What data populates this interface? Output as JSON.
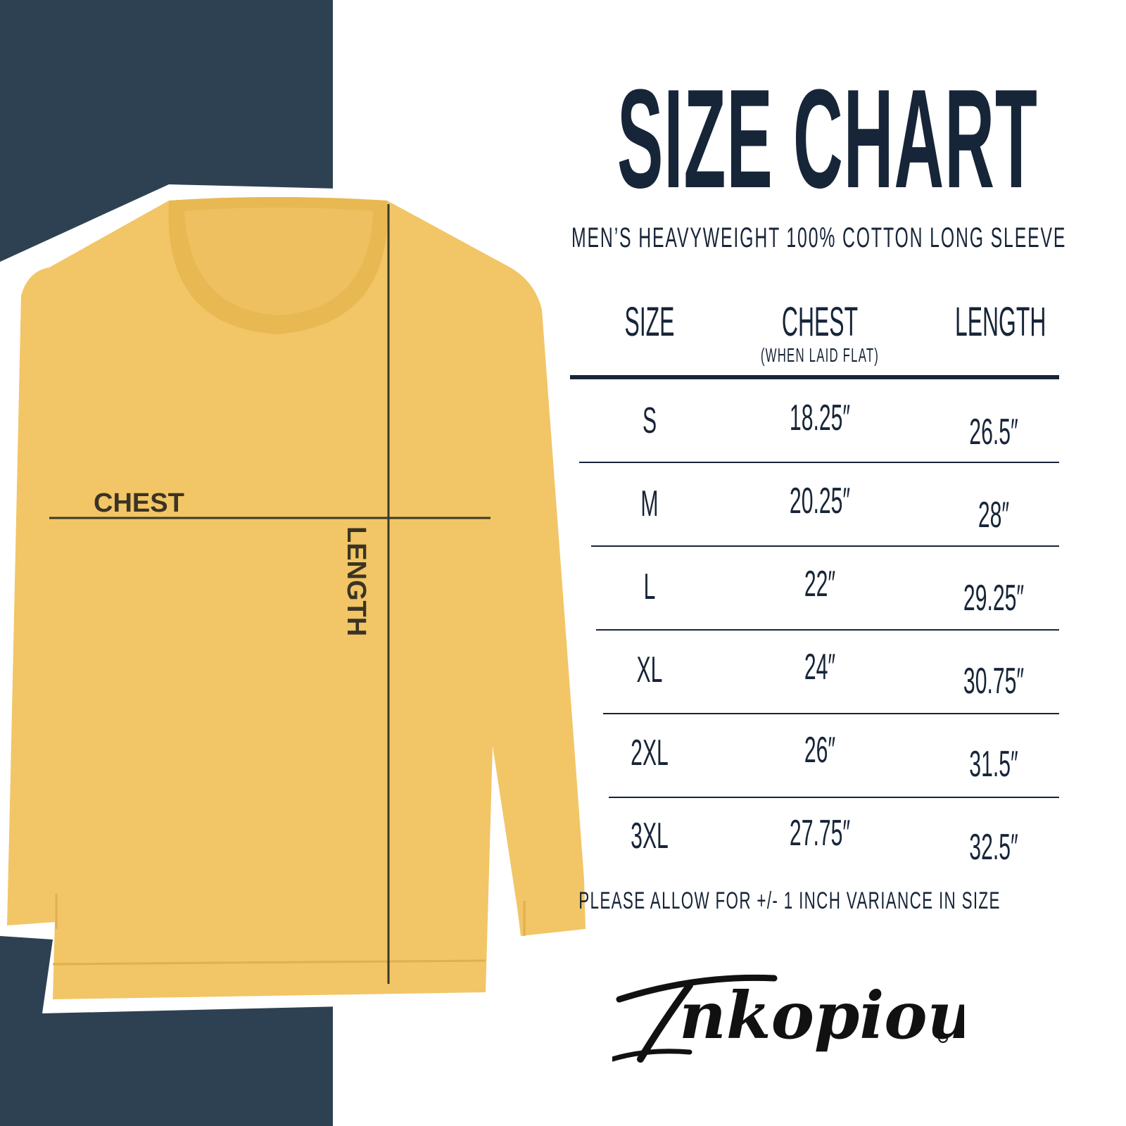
{
  "colors": {
    "panel": "#2e4153",
    "shirt": "#f2c566",
    "ink": "#172538"
  },
  "title": "SIZE CHART",
  "subtitle": "MEN’S HEAVYWEIGHT 100% COTTON LONG SLEEVE",
  "diagram": {
    "chest_label": "CHEST",
    "length_label": "LENGTH"
  },
  "table": {
    "headers": {
      "size": "SIZE",
      "chest": "CHEST",
      "chest_note": "(WHEN LAID FLAT)",
      "length": "LENGTH"
    },
    "rows": [
      {
        "size": "S",
        "chest": "18.25″",
        "length": "26.5″"
      },
      {
        "size": "M",
        "chest": "20.25″",
        "length": "28″"
      },
      {
        "size": "L",
        "chest": "22″",
        "length": "29.25″"
      },
      {
        "size": "XL",
        "chest": "24″",
        "length": "30.75″"
      },
      {
        "size": "2XL",
        "chest": "26″",
        "length": "31.5″"
      },
      {
        "size": "3XL",
        "chest": "27.75″",
        "length": "32.5″"
      }
    ]
  },
  "note": "PLEASE ALLOW FOR +/- 1 INCH VARIANCE IN SIZE",
  "brand": {
    "logo_text": "Inkopious"
  }
}
